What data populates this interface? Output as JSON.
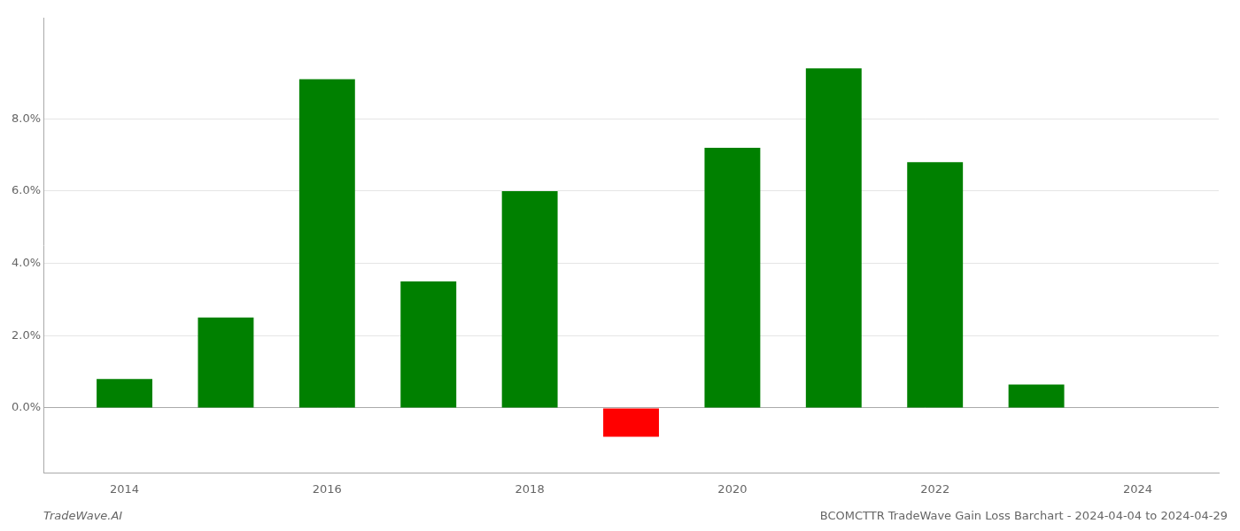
{
  "chart_data": {
    "type": "bar",
    "title": "BCOMCTTR TradeWave Gain Loss Barchart - 2024-04-04 to 2024-04-29",
    "annotations": [
      "TradeWave.AI"
    ],
    "x": [
      2014,
      2015,
      2016,
      2017,
      2018,
      2019,
      2020,
      2021,
      2022,
      2023
    ],
    "values": [
      0.008,
      0.025,
      0.091,
      0.035,
      0.06,
      -0.008,
      0.072,
      0.094,
      0.068,
      0.0065
    ],
    "colors": [
      "#008000",
      "#008000",
      "#008000",
      "#008000",
      "#008000",
      "#ff0000",
      "#008000",
      "#008000",
      "#008000",
      "#008000"
    ],
    "xlim": [
      2013.2,
      2024.8
    ],
    "xticks": [
      2014,
      2016,
      2018,
      2020,
      2022,
      2024
    ],
    "ylim": [
      -0.018,
      0.108
    ],
    "yticks": [
      {
        "value": 0.0,
        "label": "0.0%"
      },
      {
        "value": 0.02,
        "label": "2.0%"
      },
      {
        "value": 0.04,
        "label": "4.0%"
      },
      {
        "value": 0.06,
        "label": "6.0%"
      },
      {
        "value": 0.08,
        "label": "8.0%"
      }
    ],
    "grid": "y"
  }
}
